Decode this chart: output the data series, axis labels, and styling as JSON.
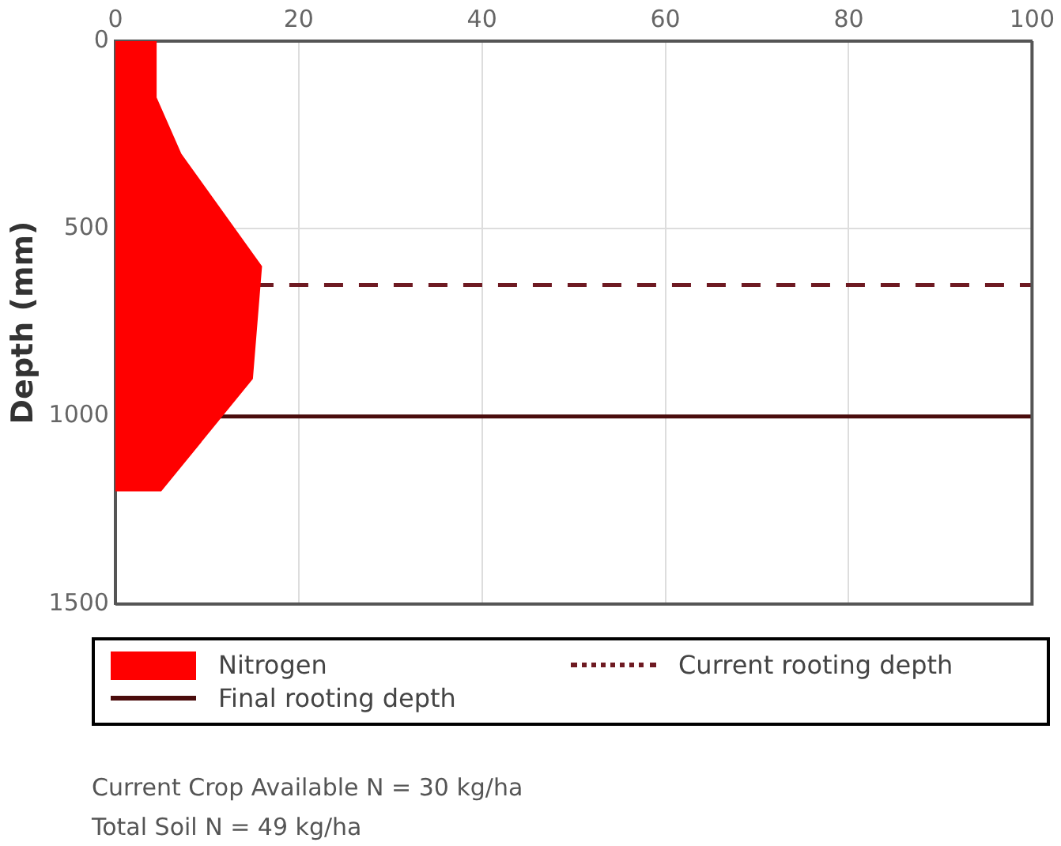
{
  "chart_data": {
    "type": "area",
    "ylabel": "Depth (mm)",
    "series": [
      {
        "name": "Nitrogen",
        "color": "#ff0000",
        "x": [
          0,
          4.5,
          4.5,
          7.2,
          16,
          15,
          5,
          0
        ],
        "values": [
          0,
          0,
          150,
          300,
          600,
          900,
          1200,
          1200
        ]
      }
    ],
    "xlim": [
      0,
      100
    ],
    "xticks": [
      0,
      20,
      40,
      60,
      80,
      100
    ],
    "ylim": [
      1500,
      0
    ],
    "yticks": [
      0,
      500,
      1000,
      1500
    ],
    "grid": true,
    "legend": "bottom",
    "ref_lines": [
      {
        "axis": "y",
        "value": 650,
        "label": "Current rooting depth",
        "color": "#6e1a22",
        "line_style": "dashed"
      },
      {
        "axis": "y",
        "value": 1000,
        "label": "Final rooting depth",
        "color": "#4a0c0c",
        "line_style": "solid"
      }
    ],
    "annotations": [
      "Current Crop Available N = 30 kg/ha",
      "Total Soil N = 49 kg/ha"
    ]
  }
}
